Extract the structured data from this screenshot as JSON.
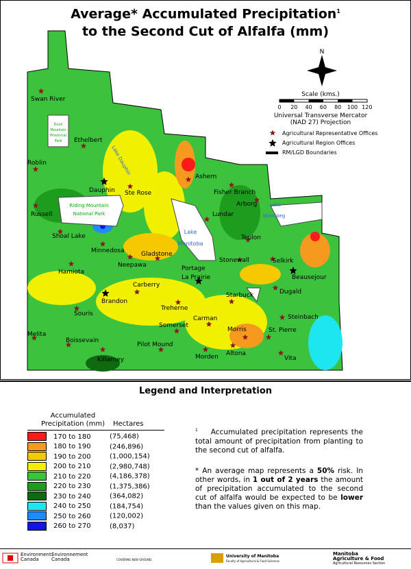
{
  "title_line1": "Average* Accumulated Precipitation",
  "title_sup": "1",
  "title_line2": "to the Second Cut of Alfalfa (mm)",
  "north": "N",
  "scale_title": "Scale (kms.)",
  "scale_ticks": [
    "0",
    "20",
    "40",
    "60",
    "80",
    "100",
    "120"
  ],
  "projection": [
    "Universal Transverse Mercator",
    "(NAD 27) Projection"
  ],
  "map_legend": [
    "Agricultural Representative Offices",
    "Agricultural Region Offices",
    "RM/LGD Boundaries"
  ],
  "places": [
    "Swan River",
    "Ethelbert",
    "Roblin",
    "Dauphin",
    "Ste Rose",
    "Russell",
    "Shoal Lake",
    "Minnedosa",
    "Neepawa",
    "Gladstone",
    "Hamiota",
    "Carberry",
    "Brandon",
    "Souris",
    "Melita",
    "Boissevain",
    "Killarney",
    "Pilot Mound",
    "Somerset",
    "Treherne",
    "Carman",
    "Morden",
    "Altona",
    "Morris",
    "St. Pierre",
    "Vita",
    "Steinbach",
    "Starbuck",
    "Portage",
    "La Prairie",
    "Stonewall",
    "Selkirk",
    "Beausejour",
    "Dugald",
    "Teulon",
    "Lundar",
    "Ashern",
    "Fisher Branch",
    "Arborg"
  ],
  "features": [
    "Duck",
    "Mountain",
    "Provincial",
    "Park",
    "Riding Mountain",
    "National Park",
    "Lake",
    "Manitoba",
    "Lake",
    "Winnipeg",
    "Lake Dauphin"
  ],
  "legend": {
    "title": "Legend and Interpretation",
    "col1": [
      "Accumulated",
      "Precipitation (mm)"
    ],
    "col2": "Hectares",
    "rows": [
      {
        "range": "170 to 180",
        "hectares": "(75,468)",
        "color": "#ff1a1a"
      },
      {
        "range": "180 to 190",
        "hectares": "(246,896)",
        "color": "#f59a1f"
      },
      {
        "range": "190 to 200",
        "hectares": "(1,000,154)",
        "color": "#f5c800"
      },
      {
        "range": "200 to 210",
        "hectares": "(2,980,748)",
        "color": "#f0f000"
      },
      {
        "range": "210 to 220",
        "hectares": "(4,186,378)",
        "color": "#3cc23c"
      },
      {
        "range": "220 to 230",
        "hectares": "(1,375,386)",
        "color": "#1e9c1e"
      },
      {
        "range": "230 to 240",
        "hectares": "(364,082)",
        "color": "#0f6a0f"
      },
      {
        "range": "240 to 250",
        "hectares": "(184,754)",
        "color": "#1ee6f0"
      },
      {
        "range": "250 to 260",
        "hectares": "(120,002)",
        "color": "#1e8cff"
      },
      {
        "range": "260 to 270",
        "hectares": "(8,037)",
        "color": "#1414e6"
      }
    ]
  },
  "note1_mark": "1",
  "note1": "Accumulated precipitation represents the total amount of precipitation from planting to the second cut of alfalfa.",
  "note2": [
    "* An average map represents a ",
    "50%",
    " risk. In other words, in ",
    "1 out of 2 years",
    " the amount of precipitation accumulated to the second cut of alfalfa would be expected to be ",
    "lower",
    " than the values given on this map."
  ],
  "footer": [
    "Environment",
    "Canada",
    "Environnement",
    "Canada",
    "COVERING NEW GROUND",
    "University of Manitoba",
    "Faculty of Agricultural & Food Sciences",
    "Manitoba",
    "Agriculture & Food",
    "Agricultural Resources Section"
  ]
}
